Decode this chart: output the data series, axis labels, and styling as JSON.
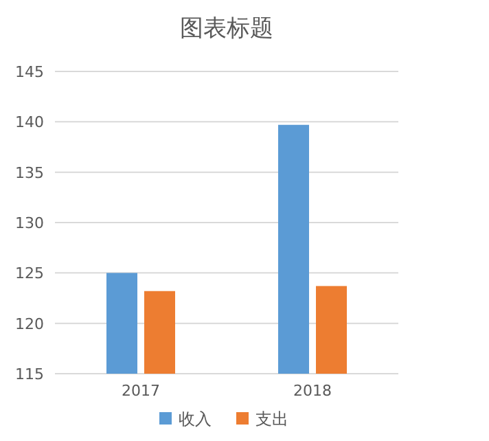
{
  "chart_data": {
    "type": "bar",
    "title": "图表标题",
    "categories": [
      "2017",
      "2018"
    ],
    "series": [
      {
        "name": "收入",
        "color": "#5b9bd5",
        "values": [
          125.0,
          139.7
        ]
      },
      {
        "name": "支出",
        "color": "#ed7d31",
        "values": [
          123.2,
          123.7
        ]
      }
    ],
    "ylim": [
      115,
      145
    ],
    "yticks": [
      115,
      120,
      125,
      130,
      135,
      140,
      145
    ],
    "grid": "y",
    "legend": "bottom"
  }
}
